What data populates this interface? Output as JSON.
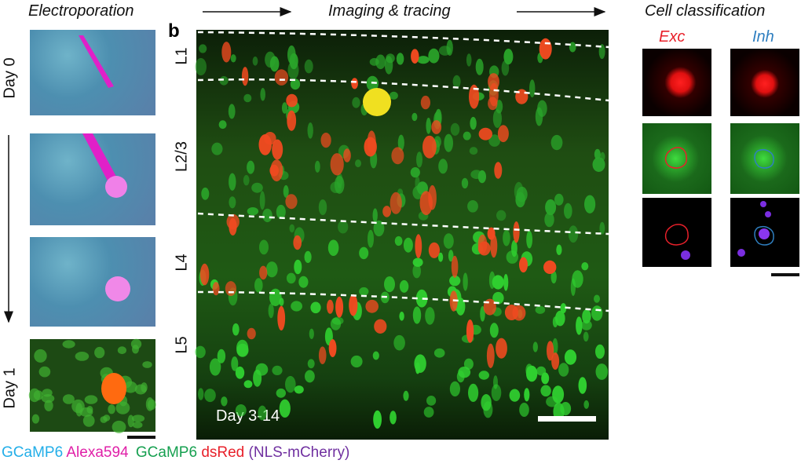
{
  "headers": {
    "left": "Electroporation",
    "middle": "Imaging & tracing",
    "right": "Cell classification"
  },
  "panel_label": "b",
  "left_panel": {
    "day_labels": [
      "Day 0",
      "Day 1"
    ]
  },
  "main_panel": {
    "layers": [
      "L1",
      "L2/3",
      "L4",
      "L5"
    ],
    "caption": "Day 3-14"
  },
  "classification": {
    "columns": [
      "Exc",
      "Inh"
    ]
  },
  "legend": [
    "GCaMP6",
    "Alexa594",
    "GCaMP6",
    "dsRed",
    "(NLS-mCherry)"
  ]
}
